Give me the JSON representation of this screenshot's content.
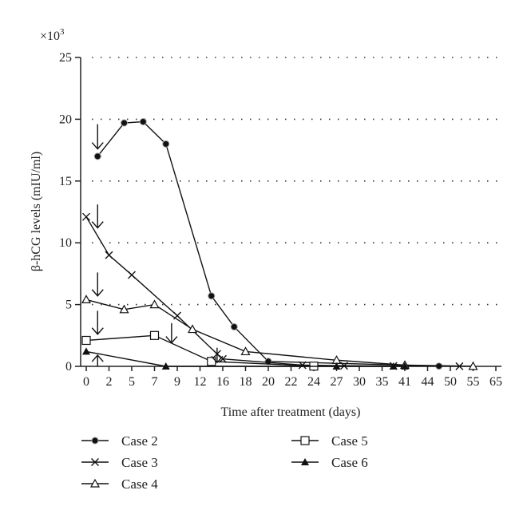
{
  "chart_data": {
    "type": "line",
    "title": "",
    "multiplier_label": "×10",
    "multiplier_exp": "3",
    "xlabel": "Time after treatment (days)",
    "ylabel": "β-hCG levels (mIU/ml)",
    "ylim": [
      0,
      25
    ],
    "yticks": [
      0,
      5,
      10,
      15,
      20,
      25
    ],
    "xticks": [
      0,
      2,
      5,
      7,
      9,
      12,
      16,
      18,
      20,
      22,
      24,
      27,
      30,
      35,
      41,
      44,
      50,
      55,
      65
    ],
    "x_scale": "non-uniform (equally spaced tick labels)",
    "grid": "horizontal dotted",
    "legend_position": "bottom",
    "series": [
      {
        "name": "Case 2",
        "marker": "circle",
        "points": [
          [
            1,
            17.0
          ],
          [
            4,
            19.7
          ],
          [
            6,
            19.8
          ],
          [
            8,
            18.0
          ],
          [
            14,
            5.7
          ],
          [
            17,
            3.2
          ],
          [
            20,
            0.4
          ],
          [
            47,
            0.02
          ]
        ]
      },
      {
        "name": "Case 3",
        "marker": "x",
        "points": [
          [
            0,
            12.1
          ],
          [
            2,
            9.0
          ],
          [
            5,
            7.4
          ],
          [
            9,
            4.1
          ],
          [
            15,
            1.0
          ],
          [
            16,
            0.6
          ],
          [
            23,
            0.1
          ],
          [
            28,
            0.05
          ],
          [
            38,
            0.03
          ],
          [
            52,
            0.01
          ]
        ]
      },
      {
        "name": "Case 4",
        "marker": "triangle-open",
        "points": [
          [
            0,
            5.4
          ],
          [
            4,
            4.6
          ],
          [
            7,
            5.0
          ],
          [
            11,
            3.0
          ],
          [
            18,
            1.2
          ],
          [
            27,
            0.5
          ],
          [
            41,
            0.1
          ],
          [
            55,
            0.01
          ]
        ]
      },
      {
        "name": "Case 5",
        "marker": "square-open",
        "points": [
          [
            0,
            2.1
          ],
          [
            7,
            2.5
          ],
          [
            14,
            0.4
          ],
          [
            24,
            0.02
          ]
        ]
      },
      {
        "name": "Case 6",
        "marker": "triangle-filled",
        "points": [
          [
            0,
            1.2
          ],
          [
            8,
            0.0
          ],
          [
            27,
            0.0
          ],
          [
            38,
            0.0
          ],
          [
            41,
            0.0
          ]
        ]
      }
    ],
    "annotations": [
      {
        "type": "arrow-down",
        "x": 1,
        "y_from": 19.6,
        "y_to": 17.6
      },
      {
        "type": "arrow-down",
        "x": 1,
        "y_from": 13.1,
        "y_to": 11.2
      },
      {
        "type": "arrow-down",
        "x": 1,
        "y_from": 7.6,
        "y_to": 5.7
      },
      {
        "type": "arrow-down",
        "x": 1,
        "y_from": 4.5,
        "y_to": 2.6
      },
      {
        "type": "arrow-down",
        "x": 8.5,
        "y_from": 3.5,
        "y_to": 1.9
      },
      {
        "type": "arrow-down",
        "x": 15,
        "y_from": 1.5,
        "y_to": 0.3
      },
      {
        "type": "arrow-up",
        "x": 1,
        "y_from": 0.0,
        "y_to": 0.9
      }
    ]
  }
}
